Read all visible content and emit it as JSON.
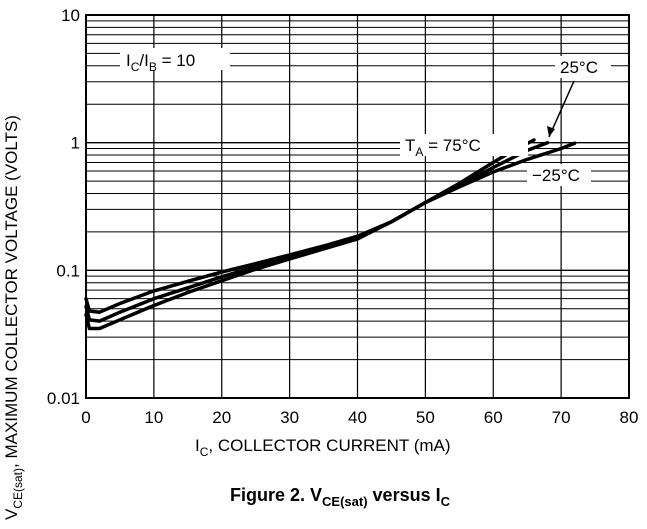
{
  "chart_data": {
    "type": "line",
    "xlabel": {
      "main": "I",
      "sub": "C",
      "rest": ", COLLECTOR CURRENT (mA)"
    },
    "ylabel": {
      "main": "V",
      "sub": "CE(sat)",
      "rest": ", MAXIMUM COLLECTOR VOLTAGE (VOLTS)"
    },
    "caption": {
      "prefix": "Figure 2. V",
      "sub1": "CE(sat)",
      "middle": " versus I",
      "sub2": "C"
    },
    "xlim": [
      0,
      80
    ],
    "ylim": [
      0.01,
      10
    ],
    "yscale": "log",
    "grid": true,
    "x_ticks": [
      "0",
      "10",
      "20",
      "30",
      "40",
      "50",
      "60",
      "70",
      "80"
    ],
    "y_ticks": [
      "0.01",
      "0.1",
      "1",
      "10"
    ],
    "condition": {
      "main": "I",
      "sub1": "C",
      "slash": "/I",
      "sub2": "B",
      "rest": " = 10"
    },
    "series": [
      {
        "name": "T_A = 75°C",
        "label": {
          "main": "T",
          "sub": "A",
          "rest": " = 75°C"
        },
        "x": [
          0,
          0.5,
          2,
          5,
          10,
          15,
          20,
          25,
          30,
          35,
          40,
          45,
          50,
          55,
          60,
          63,
          66
        ],
        "y": [
          0.06,
          0.048,
          0.047,
          0.055,
          0.069,
          0.082,
          0.097,
          0.113,
          0.132,
          0.155,
          0.185,
          0.24,
          0.34,
          0.48,
          0.7,
          0.87,
          1.05
        ]
      },
      {
        "name": "25°C",
        "label": {
          "main": "25°C"
        },
        "x": [
          0,
          0.5,
          2,
          5,
          10,
          15,
          20,
          25,
          30,
          35,
          40,
          45,
          50,
          55,
          60,
          65,
          68
        ],
        "y": [
          0.052,
          0.041,
          0.04,
          0.047,
          0.06,
          0.073,
          0.089,
          0.107,
          0.127,
          0.152,
          0.182,
          0.24,
          0.34,
          0.46,
          0.64,
          0.87,
          1.0
        ]
      },
      {
        "name": "-25°C",
        "label": {
          "main": "−25°C"
        },
        "x": [
          0,
          0.5,
          2,
          5,
          10,
          15,
          20,
          25,
          30,
          35,
          40,
          45,
          50,
          55,
          60,
          65,
          70,
          72
        ],
        "y": [
          0.045,
          0.035,
          0.035,
          0.041,
          0.053,
          0.067,
          0.083,
          0.102,
          0.123,
          0.147,
          0.176,
          0.24,
          0.34,
          0.45,
          0.59,
          0.74,
          0.9,
          0.99
        ]
      }
    ]
  }
}
